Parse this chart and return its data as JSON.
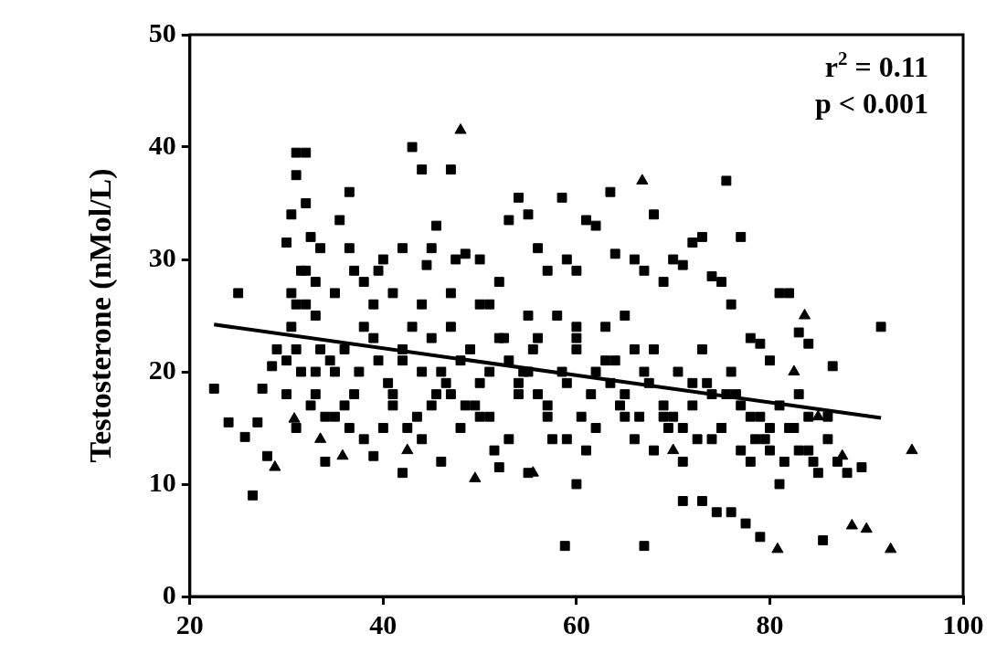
{
  "chart_data": {
    "type": "scatter",
    "ylabel": "Testosterone (nMol/L)",
    "xlim": [
      20,
      100
    ],
    "xticks": [
      20,
      40,
      60,
      80,
      100
    ],
    "ylim": [
      0,
      50
    ],
    "yticks": [
      0,
      10,
      20,
      30,
      40,
      50
    ],
    "grid": false,
    "legend": false,
    "annotations": [
      "r$^{2}$ = 0.11",
      "p < 0.001"
    ],
    "series": [
      {
        "marker": "square",
        "color": "#000000",
        "x": [
          30.5,
          31.5,
          32.5,
          33.5,
          31,
          32,
          30,
          33,
          34.5,
          36,
          37.5,
          39,
          40.5,
          42,
          43.5,
          45,
          46.5,
          48,
          49.5,
          51,
          52.5,
          54,
          55.5,
          57,
          58.5,
          60,
          61.5,
          63,
          64.5,
          66,
          67.5,
          69,
          70.5,
          72,
          73.5,
          75,
          76.5,
          78,
          79.5,
          81,
          82.5,
          84,
          35,
          38,
          41,
          44,
          47,
          50,
          53,
          56,
          59,
          62,
          65,
          68,
          71,
          74,
          77,
          80,
          83,
          86,
          36.5,
          39.5,
          42.5,
          45.5,
          48.5,
          51.5,
          54.5,
          57.5,
          60.5,
          63.5,
          66.5,
          69.5,
          72.5,
          75.5,
          78.5,
          81.5,
          84.5,
          22.5,
          24,
          25,
          25.7,
          26.5,
          27,
          27.5,
          28,
          28.5,
          29,
          30,
          30.5,
          31,
          31,
          32,
          32,
          32.5,
          33.5,
          35,
          35.5,
          36.5,
          36.5,
          37,
          38,
          39,
          39.5,
          40,
          41,
          42,
          43,
          44,
          44.5,
          45,
          45.5,
          47,
          47.5,
          48.5,
          50,
          51,
          52,
          53,
          54,
          55,
          56,
          57,
          58.5,
          59,
          60,
          61,
          62,
          63.5,
          64,
          66,
          67,
          68,
          69,
          70,
          71,
          72,
          73,
          74,
          75,
          75.5,
          76,
          77,
          78,
          79,
          80,
          81,
          82,
          83,
          84,
          86.5,
          91.5,
          89.5,
          85.5,
          79,
          77.5,
          76,
          74.5,
          73,
          71,
          67,
          58.8,
          60,
          55,
          52,
          46,
          42,
          39,
          34,
          31,
          40,
          45,
          50,
          55,
          60,
          65,
          70,
          75,
          80,
          85,
          33,
          35,
          37,
          42,
          47,
          52,
          57,
          62,
          67,
          72,
          77,
          82,
          87,
          38,
          44,
          48,
          53,
          58,
          63,
          68,
          73,
          78,
          83,
          30,
          31,
          32,
          33,
          34,
          36,
          41,
          43,
          46,
          49,
          51,
          54,
          56,
          59,
          61,
          64,
          66,
          69,
          71,
          74,
          76,
          79,
          81,
          84,
          86,
          88,
          31.5,
          30.5,
          33,
          50,
          55,
          60,
          65,
          44,
          47
        ],
        "values": [
          24,
          20,
          17,
          22,
          26,
          29,
          21,
          18,
          21,
          17,
          20,
          23,
          19,
          21,
          16,
          23,
          19,
          21,
          17,
          20,
          23,
          19,
          22,
          17,
          20,
          23,
          18,
          21,
          17,
          22,
          19,
          16,
          20,
          17,
          19,
          15,
          18,
          16,
          14,
          17,
          15,
          16,
          16,
          14,
          17,
          14,
          18,
          16,
          21,
          18,
          14,
          20,
          16,
          22,
          15,
          18,
          13,
          15,
          13,
          16,
          15,
          21,
          15,
          18,
          17,
          13,
          20,
          14,
          16,
          19,
          16,
          15,
          14,
          18,
          14,
          12,
          12,
          18.5,
          15.5,
          27,
          14.2,
          9,
          15.5,
          18.5,
          12.5,
          20.5,
          22,
          31.5,
          34,
          39.5,
          37.5,
          39.5,
          35,
          32,
          31,
          27,
          33.5,
          36,
          31,
          29,
          28,
          26,
          29,
          30,
          27,
          31,
          40,
          38,
          29.5,
          31,
          33,
          38,
          30,
          30.5,
          30,
          26,
          28,
          33.5,
          35.5,
          34,
          31,
          29,
          35.5,
          30,
          29,
          33.5,
          33,
          36,
          30.5,
          30,
          29,
          34,
          28,
          30,
          29.5,
          31.5,
          32,
          28.5,
          28,
          37,
          26,
          32,
          23,
          22.5,
          21,
          27,
          27,
          23.5,
          22.5,
          20.5,
          24,
          11.5,
          5,
          5.3,
          6.5,
          7.5,
          7.5,
          8.5,
          8.5,
          4.5,
          4.5,
          10,
          11,
          11.5,
          12,
          11,
          12.5,
          12,
          15,
          15,
          17,
          19,
          20,
          22,
          18,
          16,
          15,
          13,
          11,
          25,
          20,
          18,
          22,
          24,
          23,
          16,
          15,
          20,
          19,
          17,
          15,
          12,
          24,
          20,
          15,
          14,
          25,
          24,
          13,
          22,
          12,
          18,
          18,
          22,
          26,
          20,
          16,
          22,
          18,
          24,
          20,
          22,
          16,
          18,
          23,
          19,
          13,
          21,
          14,
          17,
          12,
          14,
          20,
          16,
          10,
          13,
          14,
          11,
          29,
          27,
          28,
          26,
          25,
          24,
          25,
          26,
          27
        ]
      },
      {
        "marker": "triangle",
        "color": "#000000",
        "x": [
          48,
          66.8,
          30.8,
          28.8,
          35.8,
          49.5,
          55.5,
          80.8,
          88.5,
          90,
          92.5,
          94.7,
          83.6,
          82.5,
          87.5,
          85,
          42.5,
          33.5,
          70
        ],
        "values": [
          41.5,
          37,
          15.8,
          11.5,
          12.5,
          10.5,
          11,
          4.2,
          6.3,
          6,
          4.2,
          13,
          25,
          20,
          12.5,
          16,
          13,
          14,
          13
        ]
      },
      {
        "type": "line",
        "color": "#000000",
        "line_style": "solid",
        "marker": "none",
        "x": [
          22.5,
          91.5
        ],
        "values": [
          24.2,
          15.9
        ]
      }
    ]
  }
}
